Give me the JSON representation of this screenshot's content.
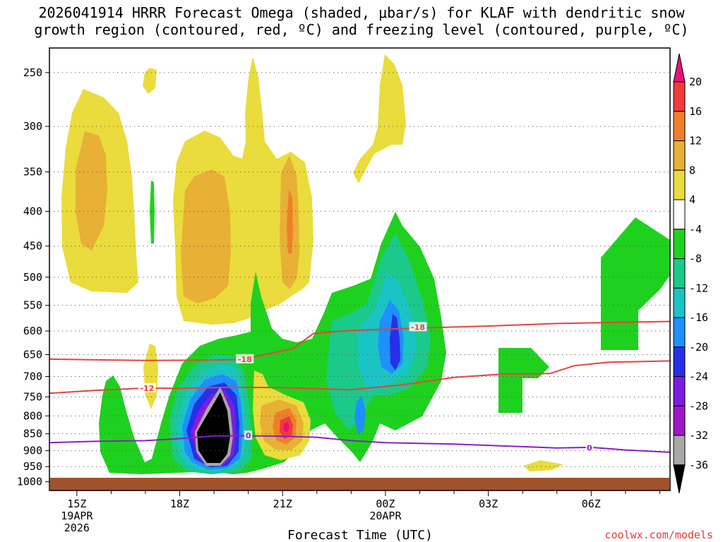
{
  "title": {
    "line1": "2026041914 HRRR Forecast Omega (shaded, μbar/s) for KLAF with dendritic snow",
    "line2": "growth region (contoured, red, ºC) and freezing level (contoured, purple, ºC)"
  },
  "credit": "coolwx.com/models",
  "chart_data": {
    "type": "heatmap",
    "title": "2026041914 HRRR Forecast Omega (shaded, μbar/s) for KLAF with dendritic snow growth region (contoured, red, ºC) and freezing level (contoured, purple, ºC)",
    "xlabel": "Forecast Time (UTC)",
    "ylabel": "",
    "x_range_hours_after_15Z_19APR": [
      -0.8,
      17.3
    ],
    "y_range_mb": [
      230,
      1030
    ],
    "y_scale": "log-pressure",
    "x_ticks": [
      {
        "h": 0,
        "label": "15Z",
        "sub": [
          "19APR",
          "2026"
        ]
      },
      {
        "h": 3,
        "label": "18Z",
        "sub": []
      },
      {
        "h": 6,
        "label": "21Z",
        "sub": []
      },
      {
        "h": 9,
        "label": "00Z",
        "sub": [
          "20APR"
        ]
      },
      {
        "h": 12,
        "label": "03Z",
        "sub": []
      },
      {
        "h": 15,
        "label": "06Z",
        "sub": []
      }
    ],
    "y_ticks": [
      250,
      300,
      350,
      400,
      450,
      500,
      550,
      600,
      650,
      700,
      750,
      800,
      850,
      900,
      950,
      1000
    ],
    "grid": true,
    "colorbar": {
      "labels": [
        "20",
        "16",
        "12",
        "8",
        "4",
        "-4",
        "-8",
        "-12",
        "-16",
        "-20",
        "-24",
        "-28",
        "-32",
        "-36"
      ],
      "colors": [
        "#e8107a",
        "#f23b3b",
        "#ef7f2a",
        "#e8b035",
        "#eadc3c",
        "#ffffff",
        "#1fd11f",
        "#1bc98a",
        "#1bc4c4",
        "#1e90ff",
        "#2630e8",
        "#7a1de0",
        "#a017c8",
        "#a8a8a8",
        "#000000"
      ]
    },
    "contours": [
      {
        "label": "-18",
        "color": "#e8413c",
        "points": [
          [
            -0.8,
            660
          ],
          [
            2,
            663
          ],
          [
            4,
            662
          ],
          [
            4.8,
            661
          ],
          [
            6.3,
            637
          ],
          [
            6.9,
            605
          ],
          [
            8,
            599
          ],
          [
            10,
            594
          ],
          [
            12,
            590
          ],
          [
            14,
            585
          ],
          [
            17.3,
            581
          ]
        ]
      },
      {
        "label": "-12",
        "color": "#e8413c",
        "points": [
          [
            -0.8,
            741
          ],
          [
            0.5,
            734
          ],
          [
            2,
            728
          ],
          [
            3,
            729
          ],
          [
            4.5,
            726
          ],
          [
            6,
            727
          ],
          [
            8,
            732
          ],
          [
            9.5,
            720
          ],
          [
            11,
            702
          ],
          [
            12.5,
            694
          ],
          [
            13.8,
            693
          ],
          [
            14.5,
            675
          ],
          [
            15.5,
            667
          ],
          [
            17.3,
            664
          ]
        ]
      },
      {
        "label": "0",
        "color": "#8a1ec8",
        "points": [
          [
            -0.8,
            876
          ],
          [
            0.5,
            872
          ],
          [
            2,
            870
          ],
          [
            3,
            864
          ],
          [
            4,
            856
          ],
          [
            5,
            856
          ],
          [
            6,
            857
          ],
          [
            7,
            860
          ],
          [
            8,
            870
          ],
          [
            9,
            876
          ],
          [
            11,
            880
          ],
          [
            12.5,
            886
          ],
          [
            14,
            892
          ],
          [
            15,
            890
          ],
          [
            16,
            898
          ],
          [
            17.3,
            905
          ]
        ]
      }
    ],
    "contour_label_positions": [
      {
        "label": "-18",
        "h": 4.9,
        "p": 660
      },
      {
        "label": "-18",
        "h": 9.95,
        "p": 592
      },
      {
        "label": "-12",
        "h": 2.05,
        "p": 728
      },
      {
        "label": "0",
        "h": 5.0,
        "p": 855
      },
      {
        "label": "0",
        "h": 14.95,
        "p": 891
      }
    ]
  }
}
